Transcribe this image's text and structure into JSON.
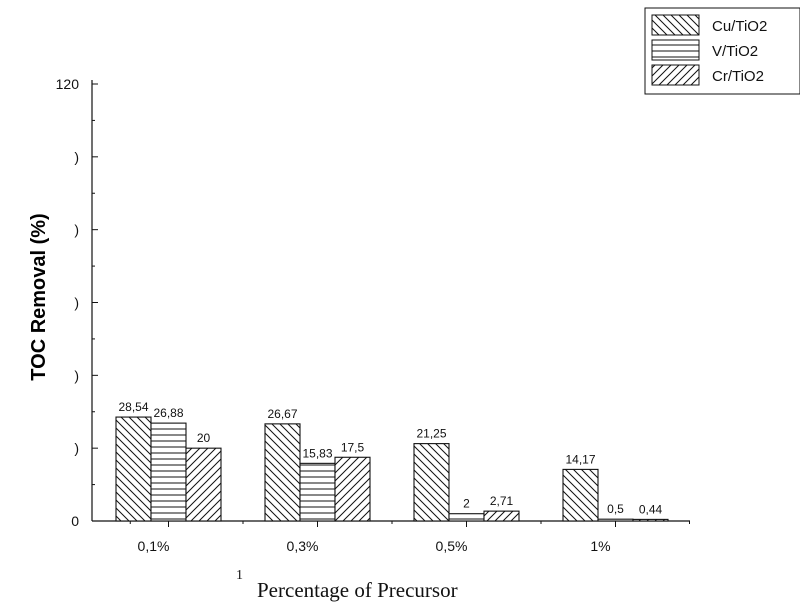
{
  "chart_data": {
    "type": "bar",
    "categories": [
      "0,1%",
      "0,3%",
      "0,5%",
      "1%"
    ],
    "series": [
      {
        "name": "Cu/TiO2",
        "values": [
          28.54,
          26.67,
          21.25,
          14.17
        ],
        "labels": [
          "28,54",
          "26,67",
          "21,25",
          "14,17"
        ],
        "pattern": "back-diagonal-hatch"
      },
      {
        "name": "V/TiO2",
        "values": [
          26.88,
          15.83,
          2,
          0.5
        ],
        "labels": [
          "26,88",
          "15,83",
          "2",
          "0,5"
        ],
        "pattern": "horizontal-hatch"
      },
      {
        "name": "Cr/TiO2",
        "values": [
          20,
          17.5,
          2.71,
          0.44
        ],
        "labels": [
          "20",
          "17,5",
          "2,71",
          "0,44"
        ],
        "pattern": "forward-diagonal-hatch"
      }
    ],
    "xlabel": "Percentage of Precursor",
    "ylabel": "TOC Removal (%)",
    "ylim": [
      0,
      120
    ],
    "yticks": [
      0,
      20,
      40,
      60,
      80,
      100,
      120
    ],
    "ytick_labels": [
      "0",
      ")",
      ")",
      ")",
      ")",
      ")",
      "120"
    ],
    "stray_mark": "1",
    "legend_position": "top-right",
    "grid": false,
    "colors": {
      "bar_fill": "#ffffff",
      "stroke": "#111111",
      "text": "#111111"
    }
  }
}
